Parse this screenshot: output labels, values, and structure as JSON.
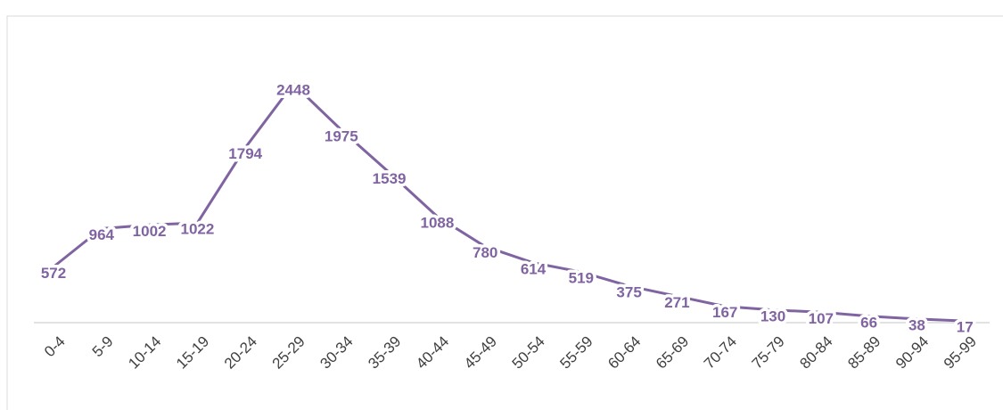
{
  "chart_data": {
    "type": "line",
    "categories": [
      "0-4",
      "5-9",
      "10-14",
      "15-19",
      "20-24",
      "25-29",
      "30-34",
      "35-39",
      "40-44",
      "45-49",
      "50-54",
      "55-59",
      "60-64",
      "65-69",
      "70-74",
      "75-79",
      "80-84",
      "85-89",
      "90-94",
      "95-99"
    ],
    "values": [
      572,
      964,
      1002,
      1022,
      1794,
      2448,
      1975,
      1539,
      1088,
      780,
      614,
      519,
      375,
      271,
      167,
      130,
      107,
      66,
      38,
      17
    ],
    "color": "#8064a2"
  }
}
